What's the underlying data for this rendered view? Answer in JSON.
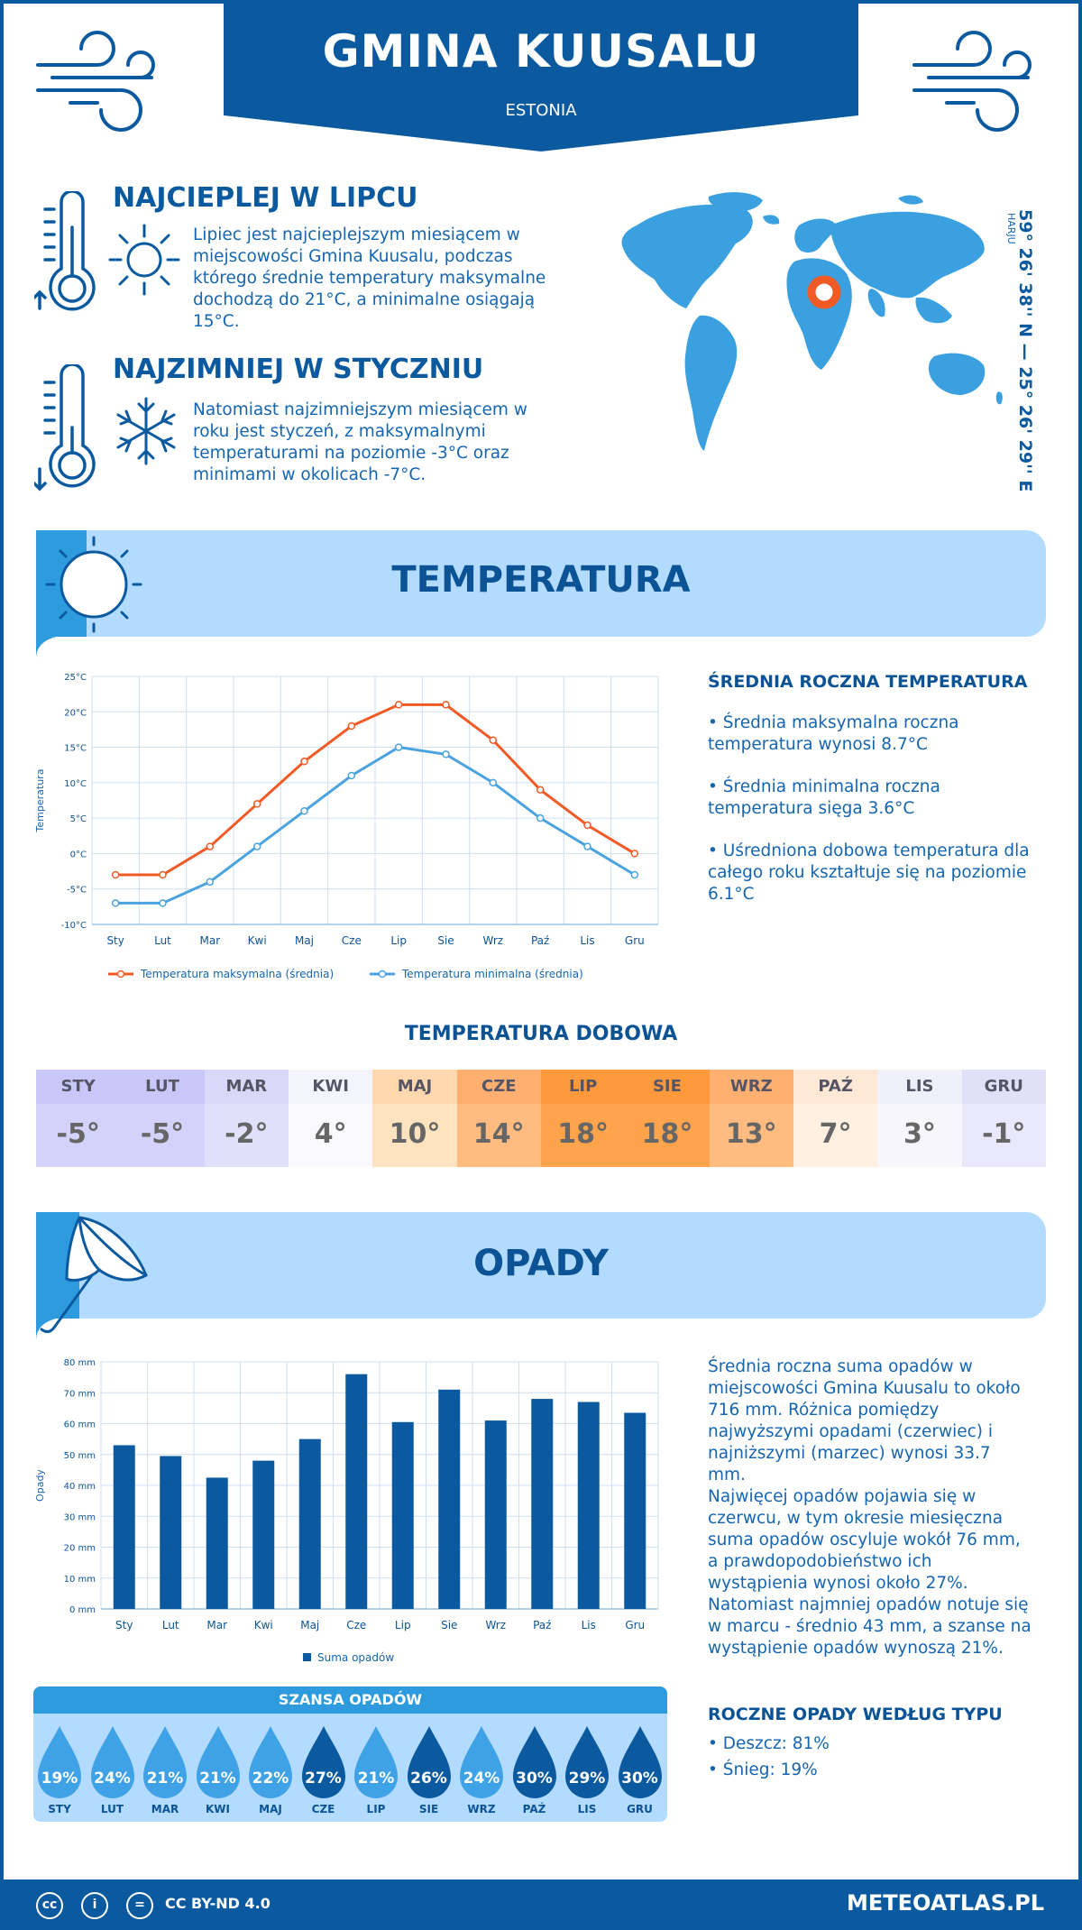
{
  "header": {
    "title": "GMINA KUUSALU",
    "subtitle": "ESTONIA"
  },
  "facts": {
    "warmest": {
      "title": "NAJCIEPLEJ W LIPCU",
      "text": "Lipiec jest najcieplejszym miesiącem w miejscowości Gmina Kuusalu, podczas którego średnie temperatury maksymalne dochodzą do 21°C, a minimalne osiągają 15°C."
    },
    "coldest": {
      "title": "NAJZIMNIEJ W STYCZNIU",
      "text": "Natomiast najzimniejszym miesiącem w roku jest styczeń, z maksymalnymi temperaturami na poziomie -3°C oraz minimami w okolicach -7°C."
    }
  },
  "location": {
    "coords": "59° 26' 38'' N — 25° 26' 29'' E",
    "region": "HARJU"
  },
  "sections": {
    "temperature": "TEMPERATURA",
    "precipitation": "OPADY"
  },
  "temp_side": {
    "title": "ŚREDNIA ROCZNA TEMPERATURA",
    "p1": "• Średnia maksymalna roczna temperatura wynosi 8.7°C",
    "p2": "• Średnia minimalna roczna temperatura sięga 3.6°C",
    "p3": "• Uśredniona dobowa temperatura dla całego roku kształtuje się na poziomie 6.1°C"
  },
  "months": [
    "Sty",
    "Lut",
    "Mar",
    "Kwi",
    "Maj",
    "Cze",
    "Lip",
    "Sie",
    "Wrz",
    "Paź",
    "Lis",
    "Gru"
  ],
  "chart_data": [
    {
      "type": "line",
      "categories": [
        "Sty",
        "Lut",
        "Mar",
        "Kwi",
        "Maj",
        "Cze",
        "Lip",
        "Sie",
        "Wrz",
        "Paź",
        "Lis",
        "Gru"
      ],
      "series": [
        {
          "name": "Temperatura maksymalna (średnia)",
          "values": [
            -3,
            -3,
            1,
            7,
            13,
            18,
            21,
            21,
            16,
            9,
            4,
            0
          ],
          "color": "#f05a24"
        },
        {
          "name": "Temperatura minimalna (średnia)",
          "values": [
            -7,
            -7,
            -4,
            1,
            6,
            11,
            15,
            14,
            10,
            5,
            1,
            -3
          ],
          "color": "#4aa3df"
        }
      ],
      "ylabel": "Temperatura",
      "ylim": [
        -10,
        25
      ],
      "yticks": [
        "25°C",
        "20°C",
        "15°C",
        "10°C",
        "5°C",
        "0°C",
        "-5°C",
        "-10°C"
      ],
      "legend": "bottom",
      "grid": true
    },
    {
      "type": "bar",
      "categories": [
        "Sty",
        "Lut",
        "Mar",
        "Kwi",
        "Maj",
        "Cze",
        "Lip",
        "Sie",
        "Wrz",
        "Paź",
        "Lis",
        "Gru"
      ],
      "series": [
        {
          "name": "Suma opadów",
          "values": [
            53,
            49.5,
            42.5,
            48,
            55,
            76,
            60.5,
            71,
            61,
            68,
            67,
            63.5
          ],
          "color": "#0b5aa0"
        }
      ],
      "ylabel": "Opady",
      "ylim": [
        0,
        80
      ],
      "yticks": [
        "80 mm",
        "70 mm",
        "60 mm",
        "50 mm",
        "40 mm",
        "30 mm",
        "20 mm",
        "10 mm",
        "0 mm"
      ],
      "legend": "bottom",
      "grid": true
    }
  ],
  "daily": {
    "title": "TEMPERATURA DOBOWA",
    "months": [
      "STY",
      "LUT",
      "MAR",
      "KWI",
      "MAJ",
      "CZE",
      "LIP",
      "SIE",
      "WRZ",
      "PAŹ",
      "LIS",
      "GRU"
    ],
    "values": [
      "-5°",
      "-5°",
      "-2°",
      "4°",
      "10°",
      "14°",
      "18°",
      "18°",
      "13°",
      "7°",
      "3°",
      "-1°"
    ],
    "head_colors": [
      "#c8c8f8",
      "#c8c8f8",
      "#d8d8f8",
      "#f4f4fc",
      "#ffd8b0",
      "#ffb070",
      "#ff9a3c",
      "#ff9a3c",
      "#ffb070",
      "#ffe8d6",
      "#f0f0fa",
      "#e0e0f8"
    ],
    "cell_colors": [
      "#d2d2fa",
      "#d2d2fa",
      "#e0e0fa",
      "#f8f8fd",
      "#ffe2c0",
      "#ffbb80",
      "#ffa44c",
      "#ffa44c",
      "#ffbb80",
      "#fff0e2",
      "#f6f6fc",
      "#e8e8fa"
    ]
  },
  "precip_side": {
    "p1": "Średnia roczna suma opadów w miejscowości Gmina Kuusalu to około 716 mm. Różnica pomiędzy najwyższymi opadami (czerwiec) i najniższymi (marzec) wynosi 33.7 mm.",
    "p2": "Najwięcej opadów pojawia się w czerwcu, w tym okresie miesięczna suma opadów oscyluje wokół 76 mm, a prawdopodobieństwo ich wystąpienia wynosi około 27%. Natomiast najmniej opadów notuje się w marcu - średnio 43 mm, a szanse na wystąpienie opadów wynoszą 21%.",
    "type_title": "ROCZNE OPADY WEDŁUG TYPU",
    "rain": "• Deszcz: 81%",
    "snow": "• Śnieg: 19%"
  },
  "chance": {
    "title": "SZANSA OPADÓW",
    "months": [
      "STY",
      "LUT",
      "MAR",
      "KWI",
      "MAJ",
      "CZE",
      "LIP",
      "SIE",
      "WRZ",
      "PAŹ",
      "LIS",
      "GRU"
    ],
    "values": [
      "19%",
      "24%",
      "21%",
      "21%",
      "22%",
      "27%",
      "21%",
      "26%",
      "24%",
      "30%",
      "29%",
      "30%"
    ],
    "drop_colors": [
      "#3fa2e6",
      "#3fa2e6",
      "#3fa2e6",
      "#3fa2e6",
      "#3fa2e6",
      "#0b5aa0",
      "#3fa2e6",
      "#0b5aa0",
      "#3fa2e6",
      "#0b5aa0",
      "#0b5aa0",
      "#0b5aa0"
    ]
  },
  "footer": {
    "license": "CC BY-ND 4.0",
    "site": "METEOATLAS.PL"
  }
}
